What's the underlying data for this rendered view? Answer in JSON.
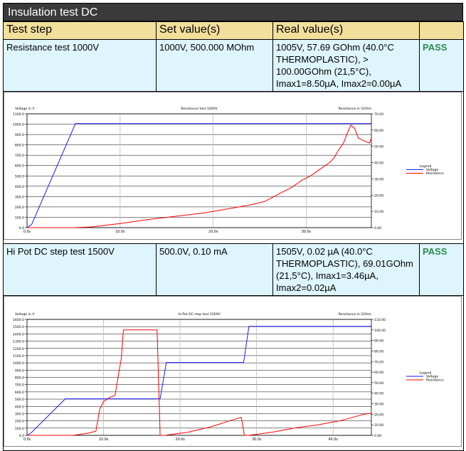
{
  "page_title": "Insulation test DC",
  "columns": [
    "Test step",
    "Set value(s)",
    "Real value(s)",
    ""
  ],
  "rows": [
    {
      "step": "Resistance test 1000V",
      "set_value": "1000V, 500.000 MOhm",
      "real_value": "1005V, 57.69 GOhm (40.0°C THERMOPLASTIC), > 100.00GOhm (21,5°C), Imax1=8.50µA, Imax2=0.00µA",
      "result": "PASS"
    },
    {
      "step": "Hi Pot DC step test 1500V",
      "set_value": "500.0V, 0.10 mA",
      "real_value": "1505V, 0.02 µA (40.0°C THERMOPLASTIC), 69.01GOhm (21,5°C), Imax1=3.46µA, Imax2=0.02µA",
      "result": "PASS"
    }
  ],
  "colors": {
    "voltage": "#1a1aff",
    "resistance": "#ff0000",
    "title_bar": "#3a3a3a",
    "header_bg": "#f2df9c",
    "row_bg": "#dff5fd",
    "pass": "#2c8a4e"
  },
  "chart_data": [
    {
      "type": "line",
      "title": "Resistance test 1000V",
      "ylabel": "Voltage in V",
      "y2label": "Resistance in GOhm",
      "ylim": [
        0,
        1100
      ],
      "y2lim": [
        0,
        70
      ],
      "xlim": [
        0,
        37
      ],
      "x_ticks": [
        "0.0s",
        "10.0s",
        "20.0s",
        "30.0s"
      ],
      "x_tick_values": [
        0,
        10,
        20,
        30
      ],
      "y_ticks": [
        "0.0",
        "100.0",
        "200.0",
        "300.0",
        "400.0",
        "500.0",
        "600.0",
        "700.0",
        "800.0",
        "900.0",
        "1000.0",
        "1100.0"
      ],
      "y2_ticks": [
        "0.00",
        "10.00",
        "20.00",
        "30.00",
        "40.00",
        "50.00",
        "60.00",
        "70.00"
      ],
      "legend_title": "Legend",
      "legend_position": "right",
      "series": [
        {
          "name": "Voltage",
          "axis": "left",
          "x": [
            0,
            0.5,
            5.2,
            37
          ],
          "y": [
            0,
            30,
            1005,
            1005
          ]
        },
        {
          "name": "Resistance",
          "axis": "right",
          "x": [
            0,
            5,
            7,
            10,
            13,
            16,
            19,
            22,
            24,
            25.5,
            26.5,
            27.5,
            28.5,
            29.5,
            30.5,
            31.5,
            32.5,
            33,
            33.5,
            34,
            34.4,
            34.8,
            35.2,
            35.6,
            36,
            36.4,
            36.8,
            37
          ],
          "y": [
            0,
            0,
            0.5,
            2.5,
            5,
            7,
            9,
            12,
            14,
            16,
            19,
            22,
            25,
            29,
            32,
            36,
            40,
            43,
            48,
            52,
            58,
            63,
            61,
            55,
            54,
            53,
            52,
            55
          ]
        }
      ]
    },
    {
      "type": "line",
      "title": "Hi Pot DC step test 1500V",
      "ylabel": "Voltage in V",
      "y2label": "Resistance in GOhm",
      "ylim": [
        0,
        1600
      ],
      "y2lim": [
        0,
        110
      ],
      "xlim": [
        0,
        45
      ],
      "x_ticks": [
        "0.0s",
        "10.0s",
        "20.0s",
        "30.0s",
        "40.0s"
      ],
      "x_tick_values": [
        0,
        10,
        20,
        30,
        40
      ],
      "y_ticks": [
        "0.0",
        "100.0",
        "200.0",
        "300.0",
        "400.0",
        "500.0",
        "600.0",
        "700.0",
        "800.0",
        "900.0",
        "1000.0",
        "1100.0",
        "1200.0",
        "1300.0",
        "1400.0",
        "1500.0",
        "1600.0"
      ],
      "y2_ticks": [
        "0.00",
        "10.00",
        "20.00",
        "30.00",
        "40.00",
        "50.00",
        "60.00",
        "70.00",
        "80.00",
        "90.00",
        "100.00",
        "110.00"
      ],
      "legend_title": "Legend",
      "legend_position": "right",
      "series": [
        {
          "name": "Voltage",
          "axis": "left",
          "x": [
            0,
            0.5,
            5,
            17.4,
            18.2,
            28.3,
            29,
            45
          ],
          "y": [
            0,
            30,
            505,
            505,
            1005,
            1005,
            1505,
            1505
          ]
        },
        {
          "name": "Resistance",
          "axis": "right",
          "x": [
            0,
            6,
            8,
            9,
            9.5,
            10,
            10.8,
            11.5,
            12,
            12.3,
            12.6,
            13.5,
            15.5,
            16,
            17,
            17.4,
            18,
            21,
            24,
            27,
            28,
            28.4,
            29,
            32,
            35,
            38,
            41,
            43,
            44,
            45
          ],
          "y": [
            0,
            0,
            2,
            4,
            25,
            32,
            36,
            38,
            60,
            72,
            100,
            100,
            100,
            100,
            100,
            0,
            0,
            3,
            8,
            15,
            17,
            0,
            0,
            3,
            7,
            10,
            14,
            18,
            20,
            21
          ]
        }
      ]
    }
  ]
}
